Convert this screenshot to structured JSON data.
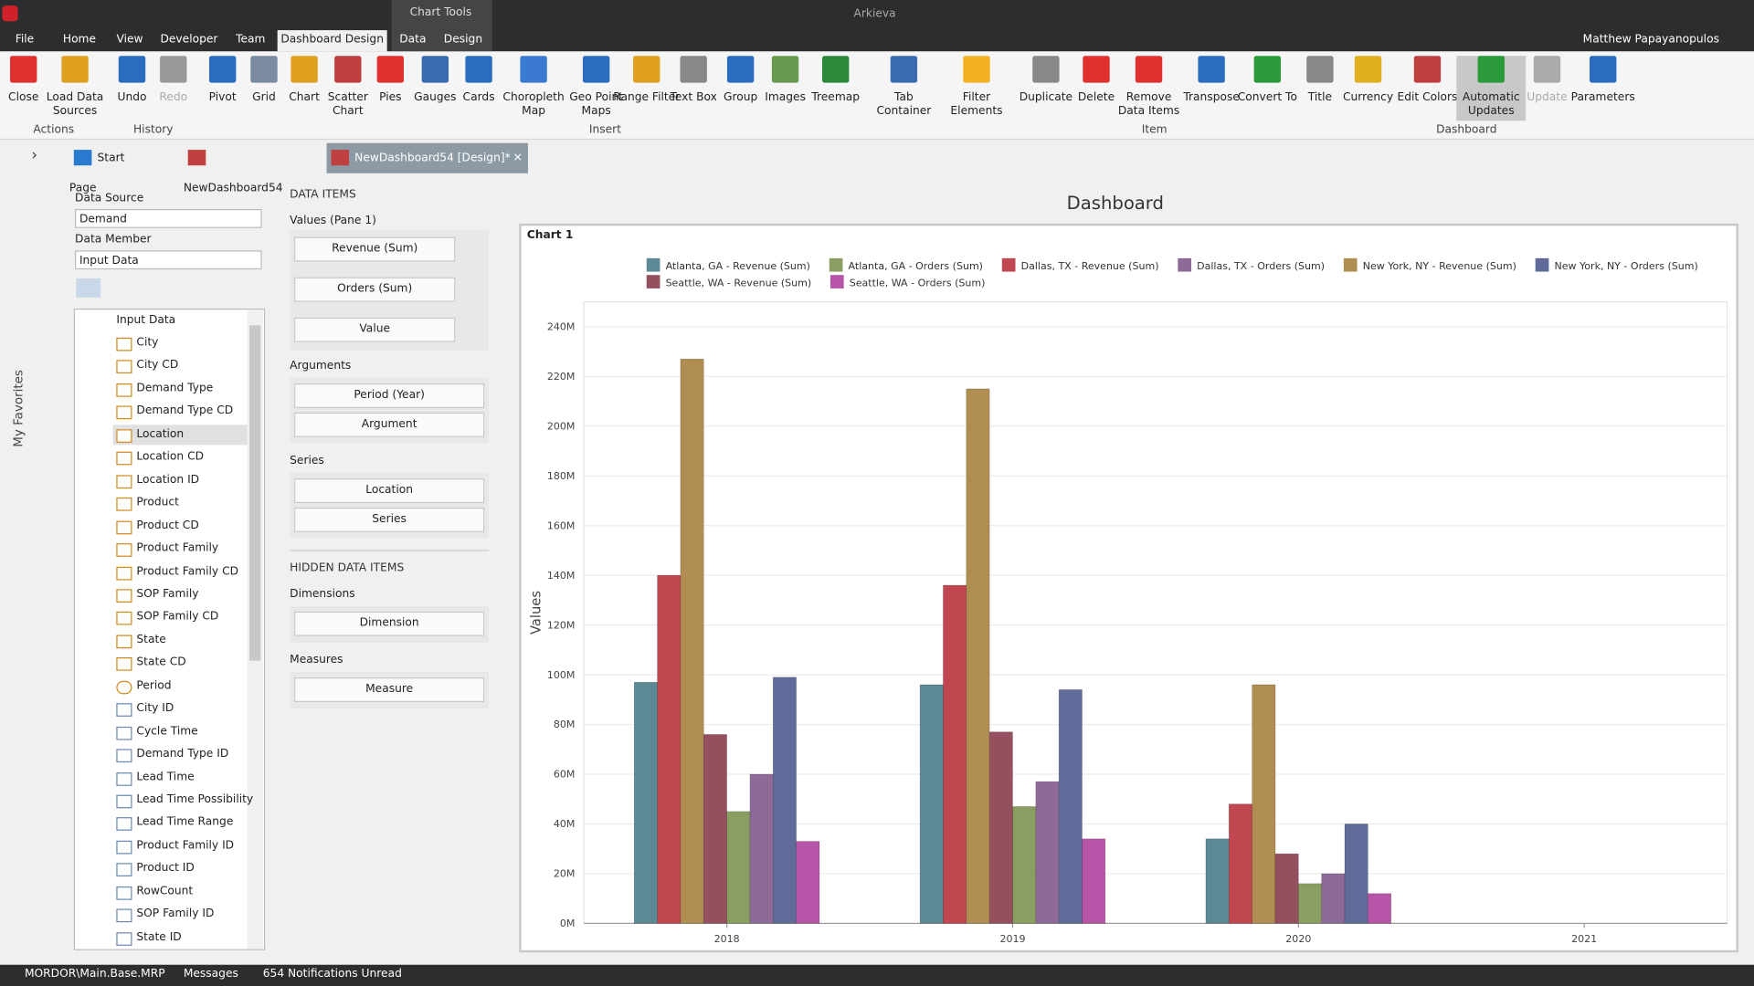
{
  "window": {
    "app": "Arkieva",
    "context": "Chart Tools",
    "user": "Matthew Papayanopulos"
  },
  "menu": [
    "File",
    "Home",
    "View",
    "Developer",
    "Team",
    "Dashboard Design",
    "Data",
    "Design"
  ],
  "ribbon": {
    "groups": [
      {
        "name": "Actions",
        "buttons": [
          "Close",
          "Load Data Sources"
        ]
      },
      {
        "name": "History",
        "buttons": [
          "Undo",
          "Redo"
        ]
      },
      {
        "name": "Insert",
        "buttons": [
          "Pivot",
          "Grid",
          "Chart",
          "Scatter Chart",
          "Pies",
          "Gauges",
          "Cards",
          "Choropleth Map",
          "Geo Point Maps",
          "Range Filter",
          "Text Box",
          "Group",
          "Images",
          "Treemap",
          "Tab Container",
          "Filter Elements"
        ]
      },
      {
        "name": "Item",
        "buttons": [
          "Duplicate",
          "Delete",
          "Remove Data Items",
          "Transpose",
          "Convert To"
        ]
      },
      {
        "name": "Dashboard",
        "buttons": [
          "Title",
          "Currency",
          "Edit Colors",
          "Automatic Updates",
          "Update",
          "Parameters"
        ]
      }
    ]
  },
  "tabs": [
    "Start Page",
    "NewDashboard54",
    "NewDashboard54 [Design]*"
  ],
  "sidebar": "My Favorites",
  "data_source": {
    "source_label": "Data Source",
    "source": "Demand",
    "member_label": "Data Member",
    "member": "Input Data",
    "root": "Input Data",
    "fields": [
      "City",
      "City CD",
      "Demand Type",
      "Demand Type CD",
      "Location",
      "Location CD",
      "Location ID",
      "Product",
      "Product CD",
      "Product Family",
      "Product Family CD",
      "SOP Family",
      "SOP Family CD",
      "State",
      "State CD",
      "Period",
      "City ID",
      "Cycle Time",
      "Demand Type ID",
      "Lead Time",
      "Lead Time Possibility",
      "Lead Time Range",
      "Product Family ID",
      "Product ID",
      "RowCount",
      "SOP Family ID",
      "State ID"
    ]
  },
  "data_items": {
    "title": "DATA ITEMS",
    "values_label": "Values (Pane 1)",
    "values": [
      "Revenue (Sum)",
      "Orders (Sum)",
      "Value"
    ],
    "arguments_label": "Arguments",
    "arguments": [
      "Period (Year)",
      "Argument"
    ],
    "series_label": "Series",
    "series": [
      "Location",
      "Series"
    ],
    "hidden_title": "HIDDEN DATA ITEMS",
    "dimensions_label": "Dimensions",
    "dimensions": [
      "Dimension"
    ],
    "measures_label": "Measures",
    "measures": [
      "Measure"
    ]
  },
  "dashboard": {
    "title": "Dashboard",
    "item_title": "Chart 1"
  },
  "chart_data": {
    "type": "bar",
    "ylabel": "Values",
    "categories": [
      "2018",
      "2019",
      "2020",
      "2021"
    ],
    "series": [
      {
        "name": "Atlanta, GA - Revenue (Sum)",
        "color": "#5b8a96",
        "values": [
          97000000,
          96000000,
          34000000,
          null
        ]
      },
      {
        "name": "Atlanta, GA - Orders (Sum)",
        "color": "#8a9e62",
        "values": [
          45000000,
          47000000,
          16000000,
          null
        ]
      },
      {
        "name": "Dallas, TX - Revenue (Sum)",
        "color": "#c0464f",
        "values": [
          140000000,
          136000000,
          48000000,
          null
        ]
      },
      {
        "name": "Dallas, TX - Orders (Sum)",
        "color": "#8e6a96",
        "values": [
          60000000,
          57000000,
          20000000,
          null
        ]
      },
      {
        "name": "New York, NY - Revenue (Sum)",
        "color": "#b08d50",
        "values": [
          227000000,
          215000000,
          96000000,
          null
        ]
      },
      {
        "name": "New York, NY - Orders (Sum)",
        "color": "#5f6b99",
        "values": [
          99000000,
          94000000,
          40000000,
          null
        ]
      },
      {
        "name": "Seattle, WA - Revenue (Sum)",
        "color": "#94505f",
        "values": [
          76000000,
          77000000,
          28000000,
          null
        ]
      },
      {
        "name": "Seattle, WA - Orders (Sum)",
        "color": "#b755a8",
        "values": [
          33000000,
          34000000,
          12000000,
          null
        ]
      }
    ],
    "ylim": [
      0,
      250000000
    ],
    "yticks": [
      {
        "value": 0,
        "label": "0M"
      },
      {
        "value": 20000000,
        "label": "20M"
      },
      {
        "value": 40000000,
        "label": "40M"
      },
      {
        "value": 60000000,
        "label": "60M"
      },
      {
        "value": 80000000,
        "label": "80M"
      },
      {
        "value": 100000000,
        "label": "100M"
      },
      {
        "value": 120000000,
        "label": "120M"
      },
      {
        "value": 140000000,
        "label": "140M"
      },
      {
        "value": 160000000,
        "label": "160M"
      },
      {
        "value": 180000000,
        "label": "180M"
      },
      {
        "value": 200000000,
        "label": "200M"
      },
      {
        "value": 220000000,
        "label": "220M"
      },
      {
        "value": 240000000,
        "label": "240M"
      }
    ],
    "grid": true,
    "legend": "top"
  },
  "status": [
    "MORDOR\\Main.Base.MRP",
    "Messages",
    "654 Notifications Unread"
  ]
}
